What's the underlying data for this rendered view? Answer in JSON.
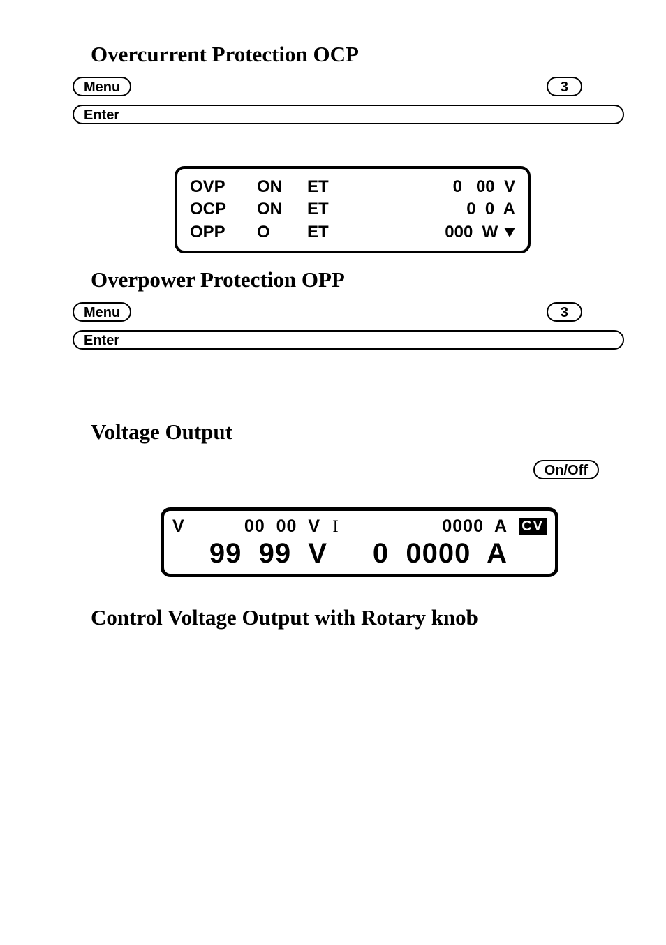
{
  "sections": {
    "ocp_title": "Overcurrent Protection OCP",
    "opp_title": "Overpower Protection OPP",
    "vout_title": "Voltage Output",
    "rotary_title": "Control Voltage Output with Rotary knob"
  },
  "buttons": {
    "menu": "Menu",
    "enter": "Enter",
    "three": "3",
    "onoff": "On/Off"
  },
  "protect_table": {
    "rows": [
      {
        "name": "OVP",
        "state": "ON",
        "et": "ET",
        "value": "0   00  V"
      },
      {
        "name": "OCP",
        "state": "ON",
        "et": "ET",
        "value": "0  0  A"
      },
      {
        "name": "OPP",
        "state": "O",
        "et": "ET",
        "value": "000  W"
      }
    ],
    "has_down_arrow_on_last": true
  },
  "output_display": {
    "row1": {
      "v_label": "V",
      "v_value": "00  00  V",
      "i_label": "I",
      "i_value": "0000  A"
    },
    "row2": {
      "v_value": "99  99  V",
      "i_value": "0  0000  A"
    },
    "badge": "CV"
  },
  "colors": {
    "text": "#000000",
    "background": "#ffffff",
    "border": "#000000",
    "badge_bg": "#000000",
    "badge_fg": "#ffffff"
  }
}
